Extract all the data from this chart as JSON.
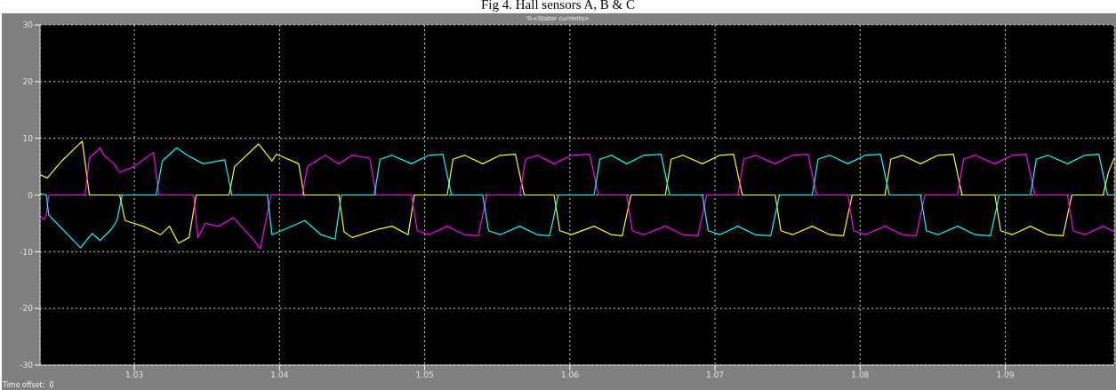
{
  "chart_data": {
    "type": "line",
    "title": "Fig 4. Hall sensors A, B & C",
    "subtitle": "%<Stator currents>",
    "annotations": [
      "Time offset:  0"
    ],
    "xlim": [
      1.0235,
      1.0975
    ],
    "ylim": [
      -30,
      30
    ],
    "xticks": [
      1.03,
      1.04,
      1.05,
      1.06,
      1.07,
      1.08,
      1.09
    ],
    "yticks": [
      -30,
      -20,
      -10,
      0,
      10,
      20,
      30
    ],
    "grid": true,
    "marker": "none",
    "series": [
      {
        "color": "#ffff00",
        "x": [
          1.0235,
          1.024,
          1.025,
          1.02641,
          1.0269,
          1.02899,
          1.02936,
          1.03058,
          1.03181,
          1.03242,
          1.03304,
          1.03377,
          1.03426,
          1.03653,
          1.0369,
          1.03856,
          1.03948,
          1.03979,
          1.04132,
          1.04169,
          1.04408,
          1.04445,
          1.045,
          1.04684,
          1.04776,
          1.04886,
          1.04929,
          1.05155,
          1.05195,
          1.05275,
          1.054,
          1.0552,
          1.05625,
          1.05685,
          1.05891,
          1.05931,
          1.06011,
          1.06167,
          1.06287,
          1.06361,
          1.06421,
          1.06658,
          1.06698,
          1.06778,
          1.06913,
          1.07033,
          1.07128,
          1.07188,
          1.07414,
          1.07454,
          1.07534,
          1.0767,
          1.0779,
          1.07885,
          1.07945,
          1.08171,
          1.08211,
          1.08291,
          1.08416,
          1.08536,
          1.08642,
          1.08702,
          1.08928,
          1.08968,
          1.09048,
          1.09173,
          1.09293,
          1.09398,
          1.09458,
          1.09674,
          1.0971,
          1.0975
        ],
        "values": [
          3.6,
          3,
          6,
          9.5,
          0,
          0,
          -4.5,
          -5.5,
          -7,
          -5.5,
          -8.5,
          -7.5,
          0,
          0,
          5,
          9,
          6,
          7.2,
          5.5,
          0,
          0,
          -6.5,
          -7.5,
          -6,
          -5.5,
          -7,
          0,
          0,
          6.3,
          7,
          5.5,
          7,
          7.2,
          0,
          0,
          -6.3,
          -7,
          -5.5,
          -7,
          -7.2,
          0,
          0,
          6.3,
          7,
          5.5,
          7,
          7.2,
          0,
          0,
          -6.3,
          -7,
          -5.5,
          -7,
          -7.2,
          0,
          0,
          6.3,
          7,
          5.5,
          7,
          7.2,
          0,
          0,
          -6.3,
          -7,
          -5.5,
          -7,
          -7.2,
          0,
          0,
          4,
          6.5
        ]
      },
      {
        "color": "#ff00ff",
        "x": [
          1.0235,
          1.0238,
          1.02394,
          1.0241,
          1.0266,
          1.0269,
          1.02764,
          1.0279,
          1.0286,
          1.02899,
          1.02997,
          1.03132,
          1.03169,
          1.03408,
          1.03439,
          1.03488,
          1.0358,
          1.03684,
          1.03825,
          1.03868,
          1.03942,
          1.04156,
          1.04193,
          1.04316,
          1.04408,
          1.045,
          1.04622,
          1.04665,
          1.04909,
          1.04949,
          1.05029,
          1.05155,
          1.05275,
          1.0537,
          1.0543,
          1.05655,
          1.05695,
          1.05775,
          1.05891,
          1.06011,
          1.06137,
          1.06197,
          1.06391,
          1.06431,
          1.06511,
          1.06658,
          1.06778,
          1.06883,
          1.06943,
          1.07158,
          1.07198,
          1.07278,
          1.07414,
          1.07534,
          1.0764,
          1.077,
          1.07915,
          1.07955,
          1.08035,
          1.08171,
          1.08291,
          1.08386,
          1.08446,
          1.08672,
          1.08712,
          1.08792,
          1.08928,
          1.09048,
          1.09143,
          1.09203,
          1.09428,
          1.09468,
          1.09548,
          1.09674,
          1.0975
        ],
        "values": [
          -3.8,
          -4.3,
          -3.5,
          0,
          0,
          6.5,
          8.3,
          7,
          5.5,
          4,
          5,
          7.5,
          0,
          0,
          -7.5,
          -5,
          -5.5,
          -4,
          -8,
          -9.5,
          0,
          0,
          5,
          7,
          5.5,
          7,
          6.5,
          0,
          0,
          -6.3,
          -7,
          -5.5,
          -7,
          -7.2,
          0,
          0,
          6.3,
          7,
          5.5,
          7,
          7.2,
          0,
          0,
          -6.3,
          -7,
          -5.5,
          -7,
          -7.2,
          0,
          0,
          6.3,
          7,
          5.5,
          7,
          7.2,
          0,
          0,
          -6.3,
          -7,
          -5.5,
          -7,
          -7.2,
          0,
          0,
          6.3,
          7,
          5.5,
          7,
          7.2,
          0,
          0,
          -6.3,
          -7,
          -5.5,
          -6.5
        ]
      },
      {
        "color": "#00ffff",
        "x": [
          1.0235,
          1.02394,
          1.0241,
          1.02629,
          1.02709,
          1.02764,
          1.02843,
          1.0288,
          1.02917,
          1.0315,
          1.03193,
          1.03291,
          1.03365,
          1.03475,
          1.03623,
          1.03672,
          1.03917,
          1.03948,
          1.0404,
          1.04175,
          1.04285,
          1.04383,
          1.04426,
          1.04653,
          1.04693,
          1.04773,
          1.04909,
          1.05029,
          1.05125,
          1.05185,
          1.054,
          1.0544,
          1.0552,
          1.05655,
          1.05775,
          1.05861,
          1.05921,
          1.06167,
          1.06207,
          1.06287,
          1.06391,
          1.06511,
          1.06628,
          1.06688,
          1.06913,
          1.06953,
          1.07033,
          1.07158,
          1.07278,
          1.07384,
          1.07444,
          1.0767,
          1.0771,
          1.0779,
          1.07915,
          1.08035,
          1.08141,
          1.08201,
          1.08416,
          1.08456,
          1.08536,
          1.08672,
          1.08792,
          1.08898,
          1.08958,
          1.09173,
          1.09213,
          1.09293,
          1.09428,
          1.09548,
          1.09644,
          1.09704,
          1.0975
        ],
        "values": [
          0.3,
          0,
          -3.5,
          -9.3,
          -6.8,
          -8,
          -6,
          -4.5,
          0,
          0,
          6,
          8.3,
          7,
          5.5,
          6.2,
          0,
          0,
          -7,
          -6,
          -4.5,
          -7,
          -7.8,
          0,
          0,
          6.3,
          7,
          5.5,
          7,
          7.2,
          0,
          0,
          -6.3,
          -7,
          -5.5,
          -7,
          -7.2,
          0,
          0,
          6.3,
          7,
          5.5,
          7,
          7.2,
          0,
          0,
          -6.3,
          -7,
          -5.5,
          -7,
          -7.2,
          0,
          0,
          6.3,
          7,
          5.5,
          7,
          7.2,
          0,
          0,
          -6.3,
          -7,
          -5.5,
          -7,
          -7.2,
          0,
          0,
          6.3,
          7,
          5.5,
          7,
          7.2,
          0,
          0
        ]
      }
    ]
  }
}
